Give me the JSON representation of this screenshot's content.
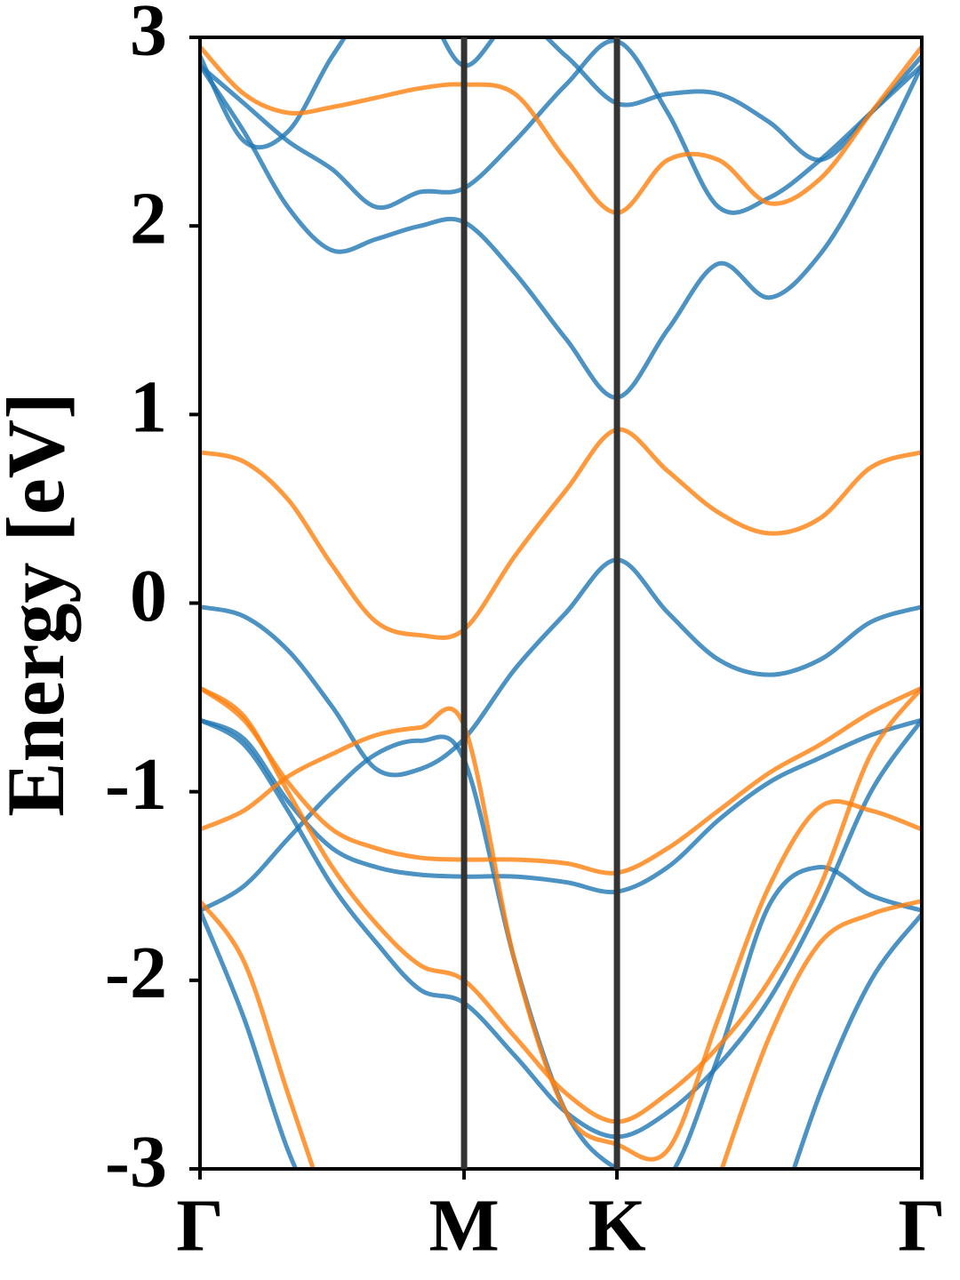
{
  "chart_data": {
    "type": "line",
    "y_label": "Energy [eV]",
    "x": [
      0,
      0.096,
      0.192,
      0.289,
      0.385,
      0.481,
      0.577,
      0.688,
      0.8,
      0.911,
      1.022,
      1.133,
      1.244,
      1.355,
      1.466,
      1.577
    ],
    "xlim": [
      0,
      1.577
    ],
    "xticks": [
      {
        "value": 0,
        "label": "Γ"
      },
      {
        "value": 0.577,
        "label": "M"
      },
      {
        "value": 0.911,
        "label": "K"
      },
      {
        "value": 1.577,
        "label": "Γ"
      }
    ],
    "ylim": [
      -3,
      3
    ],
    "yticks": [
      -3,
      -2,
      -1,
      0,
      1,
      2,
      3
    ],
    "series": [
      {
        "color": "#1f77b4",
        "values": [
          -0.02,
          -0.07,
          -0.25,
          -0.55,
          -0.88,
          -0.88,
          -0.72,
          -0.35,
          -0.05,
          0.23,
          -0.05,
          -0.3,
          -0.38,
          -0.3,
          -0.1,
          -0.02
        ]
      },
      {
        "color": "#1f77b4",
        "values": [
          2.85,
          2.5,
          2.1,
          1.87,
          1.93,
          2.0,
          2.02,
          1.75,
          1.4,
          1.09,
          1.45,
          1.8,
          1.62,
          1.85,
          2.3,
          2.85
        ]
      },
      {
        "color": "#1f77b4",
        "values": [
          2.85,
          2.65,
          2.45,
          2.3,
          2.1,
          2.18,
          2.2,
          2.45,
          2.75,
          2.98,
          2.6,
          2.1,
          2.15,
          2.35,
          2.6,
          2.85
        ]
      },
      {
        "color": "#1f77b4",
        "values": [
          2.9,
          2.45,
          2.5,
          2.9,
          3.2,
          3.2,
          2.85,
          3.1,
          2.9,
          2.65,
          2.7,
          2.7,
          2.55,
          2.35,
          2.6,
          2.9
        ]
      },
      {
        "color": "#1f77b4",
        "values": [
          -0.62,
          -0.75,
          -1.1,
          -1.5,
          -1.8,
          -2.05,
          -2.12,
          -2.4,
          -2.7,
          -2.83,
          -2.7,
          -2.45,
          -2.1,
          -1.6,
          -1.0,
          -0.62
        ]
      },
      {
        "color": "#1f77b4",
        "values": [
          -1.63,
          -1.5,
          -1.25,
          -1.0,
          -0.8,
          -0.73,
          -0.83,
          -1.9,
          -2.7,
          -3.0,
          -3.05,
          -2.4,
          -1.6,
          -1.4,
          -1.55,
          -1.63
        ]
      },
      {
        "color": "#1f77b4",
        "values": [
          -0.62,
          -0.72,
          -1.05,
          -1.3,
          -1.4,
          -1.44,
          -1.45,
          -1.45,
          -1.48,
          -1.53,
          -1.4,
          -1.15,
          -0.95,
          -0.82,
          -0.7,
          -0.62
        ]
      },
      {
        "color": "#1f77b4",
        "values": [
          -1.63,
          -2.2,
          -2.9,
          -3.4,
          null,
          null,
          null,
          null,
          null,
          null,
          null,
          null,
          -3.4,
          -2.6,
          -2.0,
          -1.65
        ]
      },
      {
        "color": "#ff7f0e",
        "values": [
          0.8,
          0.75,
          0.55,
          0.2,
          -0.1,
          -0.17,
          -0.14,
          0.25,
          0.6,
          0.92,
          0.7,
          0.48,
          0.37,
          0.45,
          0.72,
          0.8
        ]
      },
      {
        "color": "#ff7f0e",
        "values": [
          2.95,
          2.7,
          2.6,
          2.63,
          2.68,
          2.73,
          2.75,
          2.7,
          2.35,
          2.07,
          2.35,
          2.35,
          2.12,
          2.25,
          2.6,
          2.95
        ]
      },
      {
        "color": "#ff7f0e",
        "values": [
          -0.45,
          -0.6,
          -1.0,
          -1.4,
          -1.7,
          -1.92,
          -2.0,
          -2.3,
          -2.6,
          -2.75,
          -2.6,
          -2.35,
          -2.0,
          -1.5,
          -0.8,
          -0.45
        ]
      },
      {
        "color": "#ff7f0e",
        "values": [
          -1.2,
          -1.1,
          -0.92,
          -0.8,
          -0.7,
          -0.66,
          -0.65,
          -1.9,
          -2.7,
          -2.87,
          -2.9,
          -2.2,
          -1.5,
          -1.08,
          -1.1,
          -1.2
        ]
      },
      {
        "color": "#ff7f0e",
        "values": [
          -0.45,
          -0.62,
          -0.95,
          -1.2,
          -1.3,
          -1.35,
          -1.36,
          -1.36,
          -1.38,
          -1.43,
          -1.3,
          -1.1,
          -0.9,
          -0.75,
          -0.58,
          -0.45
        ]
      },
      {
        "color": "#ff7f0e",
        "values": [
          -1.58,
          -1.9,
          -2.6,
          -3.3,
          null,
          null,
          null,
          null,
          null,
          null,
          null,
          -3.05,
          -2.3,
          -1.8,
          -1.65,
          -1.58
        ]
      }
    ]
  }
}
